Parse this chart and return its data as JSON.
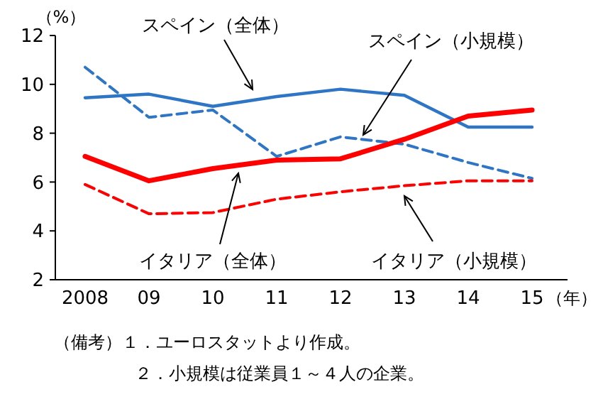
{
  "chart_data": {
    "type": "line",
    "ylabel": "（%）",
    "xlabel": "（年）",
    "categories": [
      "2008",
      "09",
      "10",
      "11",
      "12",
      "13",
      "14",
      "15"
    ],
    "ylim": [
      2,
      12
    ],
    "yticks": [
      2,
      4,
      6,
      8,
      10,
      12
    ],
    "marker": "none",
    "series": [
      {
        "name": "スペイン（全体）",
        "color": "#2e75c6",
        "line_style": "solid",
        "values": [
          9.45,
          9.6,
          9.1,
          9.5,
          9.8,
          9.55,
          8.25,
          8.25
        ]
      },
      {
        "name": "スペイン（小規模）",
        "color": "#2e75c6",
        "line_style": "dashed",
        "values": [
          10.7,
          8.65,
          8.95,
          7.05,
          7.85,
          7.55,
          6.8,
          6.15
        ]
      },
      {
        "name": "イタリア（全体）",
        "color": "#ff0000",
        "line_style": "solid",
        "values": [
          7.05,
          6.05,
          6.55,
          6.9,
          6.95,
          7.75,
          8.7,
          8.95
        ]
      },
      {
        "name": "イタリア（小規模）",
        "color": "#ff0000",
        "line_style": "dashed",
        "values": [
          5.9,
          4.7,
          4.75,
          5.3,
          5.6,
          5.85,
          6.05,
          6.05
        ]
      }
    ],
    "annotations": [
      "（備考）１．ユーロスタットより作成。",
      "２．小規模は従業員１～４人の企業。"
    ]
  }
}
